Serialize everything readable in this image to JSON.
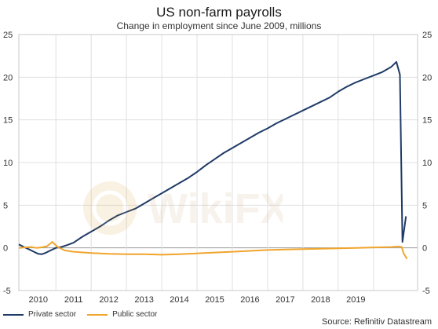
{
  "chart_data": {
    "type": "line",
    "title": "US non-farm payrolls",
    "subtitle": "Change in employment since June 2009, millions",
    "xlabel": "",
    "ylabel": "",
    "x_tick_labels": [
      "2010",
      "2011",
      "2012",
      "2013",
      "2014",
      "2015",
      "2016",
      "2017",
      "2018",
      "2019"
    ],
    "y_ticks": [
      -5,
      0,
      5,
      10,
      15,
      20,
      25
    ],
    "ylim": [
      -5,
      25
    ],
    "xlim": [
      2009.45,
      2020.75
    ],
    "grid": true,
    "legend_position": "bottom-left",
    "series": [
      {
        "name": "Private sector",
        "color": "#1f3b66",
        "points": [
          [
            2009.45,
            0.4
          ],
          [
            2009.6,
            0.1
          ],
          [
            2009.75,
            -0.2
          ],
          [
            2009.9,
            -0.5
          ],
          [
            2010.0,
            -0.7
          ],
          [
            2010.1,
            -0.75
          ],
          [
            2010.2,
            -0.6
          ],
          [
            2010.35,
            -0.3
          ],
          [
            2010.5,
            0.0
          ],
          [
            2010.65,
            0.1
          ],
          [
            2010.8,
            0.3
          ],
          [
            2011.0,
            0.6
          ],
          [
            2011.25,
            1.3
          ],
          [
            2011.5,
            1.9
          ],
          [
            2011.75,
            2.5
          ],
          [
            2012.0,
            3.2
          ],
          [
            2012.25,
            3.8
          ],
          [
            2012.5,
            4.2
          ],
          [
            2012.75,
            4.6
          ],
          [
            2013.0,
            5.2
          ],
          [
            2013.25,
            5.8
          ],
          [
            2013.5,
            6.4
          ],
          [
            2013.75,
            7.0
          ],
          [
            2014.0,
            7.6
          ],
          [
            2014.25,
            8.2
          ],
          [
            2014.5,
            8.9
          ],
          [
            2014.75,
            9.7
          ],
          [
            2015.0,
            10.4
          ],
          [
            2015.25,
            11.1
          ],
          [
            2015.5,
            11.7
          ],
          [
            2015.75,
            12.3
          ],
          [
            2016.0,
            12.9
          ],
          [
            2016.25,
            13.5
          ],
          [
            2016.5,
            14.0
          ],
          [
            2016.75,
            14.6
          ],
          [
            2017.0,
            15.1
          ],
          [
            2017.25,
            15.6
          ],
          [
            2017.5,
            16.1
          ],
          [
            2017.75,
            16.6
          ],
          [
            2018.0,
            17.1
          ],
          [
            2018.25,
            17.6
          ],
          [
            2018.5,
            18.3
          ],
          [
            2018.75,
            18.9
          ],
          [
            2019.0,
            19.4
          ],
          [
            2019.25,
            19.8
          ],
          [
            2019.5,
            20.2
          ],
          [
            2019.75,
            20.6
          ],
          [
            2020.0,
            21.2
          ],
          [
            2020.15,
            21.8
          ],
          [
            2020.25,
            20.3
          ],
          [
            2020.32,
            0.7
          ],
          [
            2020.42,
            3.7
          ]
        ]
      },
      {
        "name": "Public sector",
        "color": "#f0a52c",
        "points": [
          [
            2009.45,
            0.0
          ],
          [
            2009.6,
            0.05
          ],
          [
            2009.8,
            0.1
          ],
          [
            2009.95,
            0.0
          ],
          [
            2010.15,
            0.1
          ],
          [
            2010.25,
            0.2
          ],
          [
            2010.4,
            0.7
          ],
          [
            2010.55,
            0.1
          ],
          [
            2010.75,
            -0.3
          ],
          [
            2011.0,
            -0.45
          ],
          [
            2011.5,
            -0.6
          ],
          [
            2012.0,
            -0.7
          ],
          [
            2012.5,
            -0.75
          ],
          [
            2013.0,
            -0.75
          ],
          [
            2013.5,
            -0.8
          ],
          [
            2014.0,
            -0.75
          ],
          [
            2014.5,
            -0.65
          ],
          [
            2015.0,
            -0.55
          ],
          [
            2015.5,
            -0.45
          ],
          [
            2016.0,
            -0.35
          ],
          [
            2016.5,
            -0.25
          ],
          [
            2017.0,
            -0.2
          ],
          [
            2017.5,
            -0.15
          ],
          [
            2018.0,
            -0.1
          ],
          [
            2018.5,
            -0.05
          ],
          [
            2019.0,
            0.0
          ],
          [
            2019.5,
            0.05
          ],
          [
            2020.0,
            0.1
          ],
          [
            2020.2,
            0.15
          ],
          [
            2020.3,
            0.1
          ],
          [
            2020.35,
            -0.6
          ],
          [
            2020.45,
            -1.3
          ]
        ]
      }
    ]
  },
  "source": "Source: Refinitiv Datastream",
  "watermark": "WikiFX"
}
